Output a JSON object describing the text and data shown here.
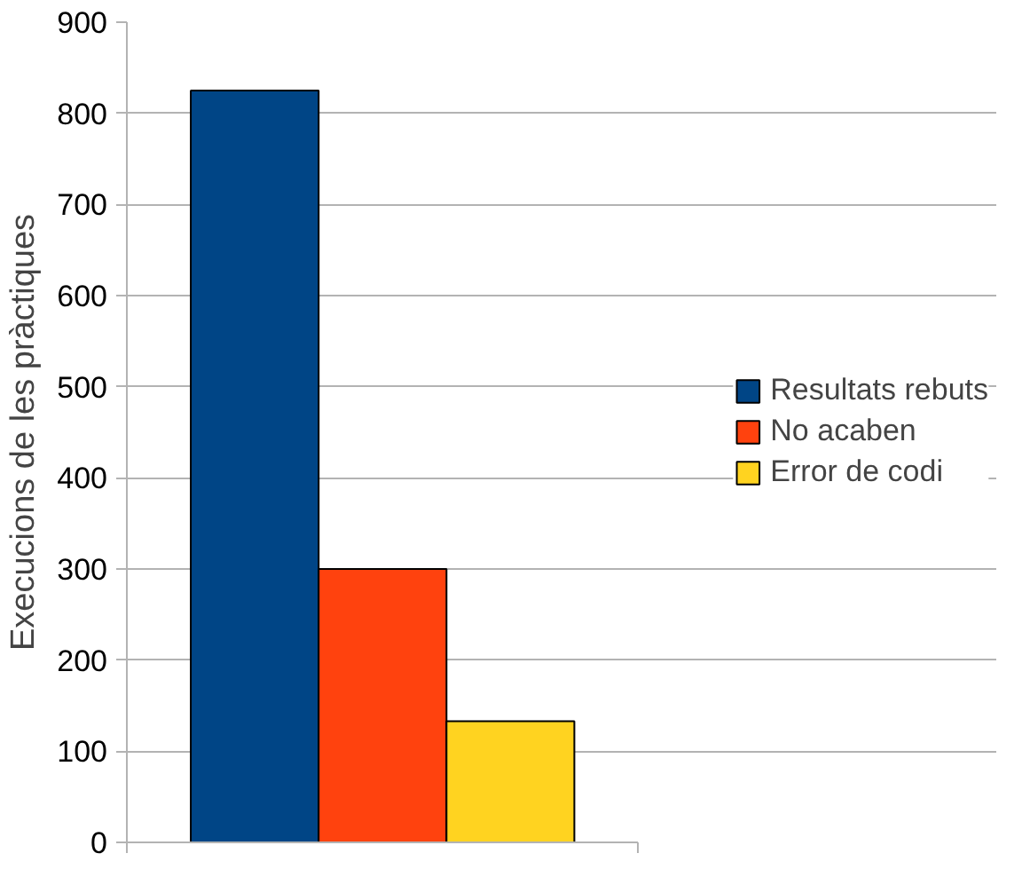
{
  "chart_data": {
    "type": "bar",
    "ylabel": "Execucions de les pràctiques",
    "categories": [
      null
    ],
    "series": [
      {
        "name": "Resultats rebuts",
        "color": "#004586",
        "values": [
          825
        ]
      },
      {
        "name": "No acaben",
        "color": "#ff420e",
        "values": [
          300
        ]
      },
      {
        "name": "Error de codi",
        "color": "#ffd320",
        "values": [
          133
        ]
      }
    ],
    "ylim": [
      0,
      900
    ],
    "yticks": [
      0,
      100,
      200,
      300,
      400,
      500,
      600,
      700,
      800,
      900
    ],
    "grid": "y",
    "legend": "right"
  }
}
